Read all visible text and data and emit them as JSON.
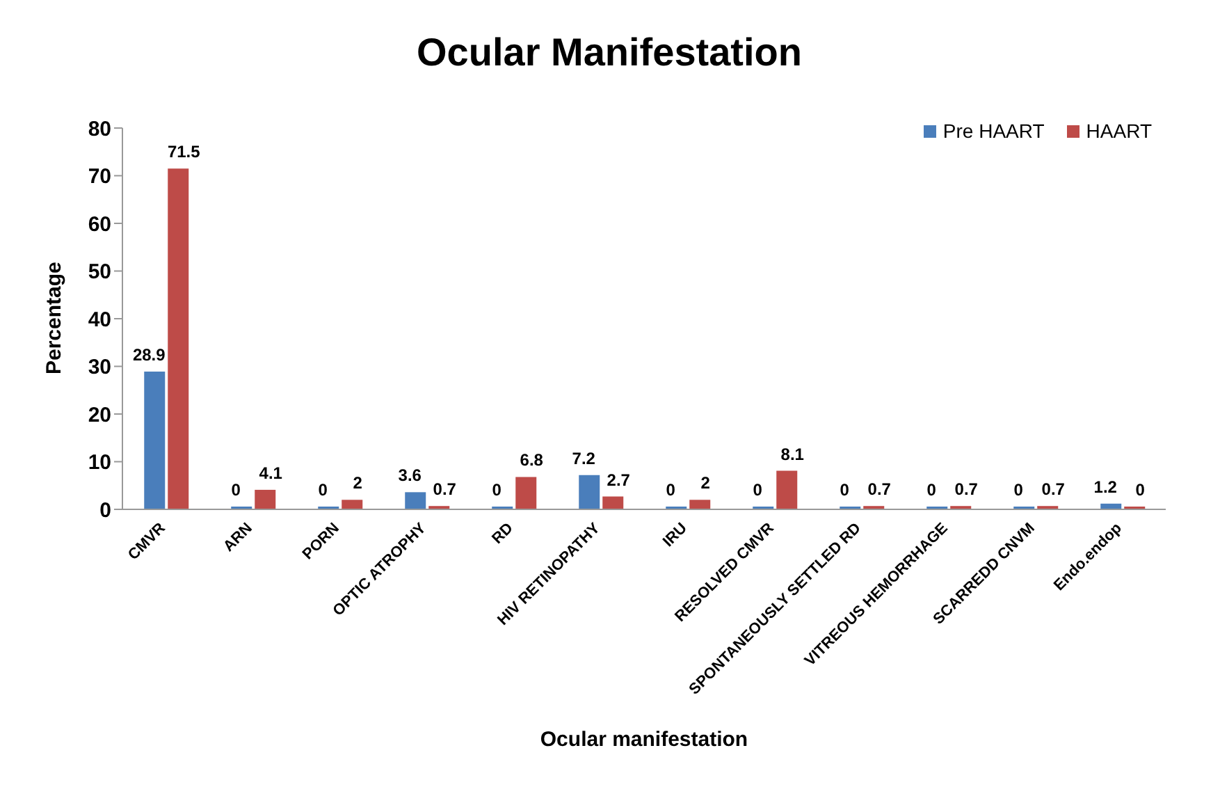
{
  "chart_data": {
    "type": "bar",
    "title": "Ocular Manifestation",
    "xlabel": "Ocular manifestation",
    "ylabel": "Percentage",
    "categories": [
      "CMVR",
      "ARN",
      "PORN",
      "OPTIC ATROPHY",
      "RD",
      "HIV RETINOPATHY",
      "IRU",
      "RESOLVED CMVR",
      "SPONTANEOUSLY SETTLED RD",
      "VITREOUS HEMORRHAGE",
      "SCARREDD CNVM",
      "Endo.endop"
    ],
    "series": [
      {
        "name": "Pre HAART",
        "color": "#4a7ebb",
        "values": [
          28.9,
          0,
          0,
          3.6,
          0,
          7.2,
          0,
          0,
          0,
          0,
          0,
          1.2
        ]
      },
      {
        "name": "HAART",
        "color": "#be4b48",
        "values": [
          71.5,
          4.1,
          2,
          0.7,
          6.8,
          2.7,
          2,
          8.1,
          0.7,
          0.7,
          0.7,
          0
        ]
      }
    ],
    "ylim": [
      0,
      80
    ],
    "yticks": [
      0,
      10,
      20,
      30,
      40,
      50,
      60,
      70,
      80
    ],
    "grid": false,
    "legend": "top right",
    "data_labels": true
  }
}
